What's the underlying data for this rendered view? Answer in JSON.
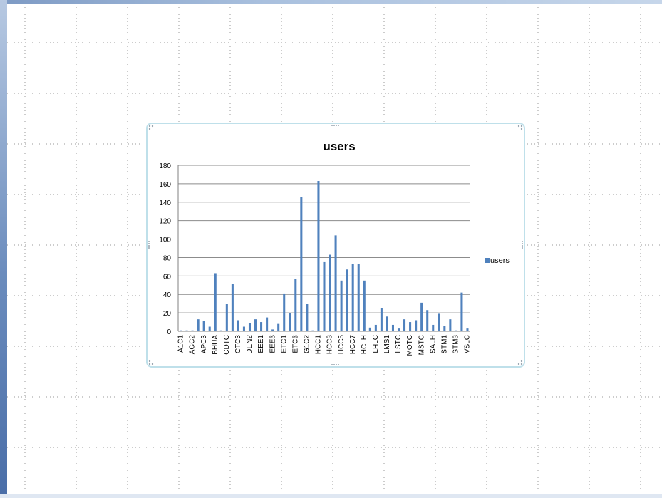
{
  "chart_data": {
    "type": "bar",
    "title": "users",
    "legend": {
      "position": "right",
      "entries": [
        "users"
      ]
    },
    "ylim": [
      0,
      180
    ],
    "yticks": [
      0,
      20,
      40,
      60,
      80,
      100,
      120,
      140,
      160,
      180
    ],
    "grid": true,
    "bar_color": "#4f81bd",
    "category_labels_shown": [
      "A1C1",
      "AGC2",
      "APC3",
      "BHUA",
      "CDTC",
      "CTC3",
      "DEN2",
      "EEE1",
      "EEE3",
      "ETC1",
      "ETC3",
      "G1C2",
      "HCC1",
      "HCC3",
      "HCC5",
      "HCC7",
      "HCLH",
      "LHLC",
      "LMS1",
      "LSTC",
      "MOTC",
      "MSTC",
      "SALH",
      "STM1",
      "STM3",
      "VSLC"
    ],
    "series": [
      {
        "name": "users",
        "values": [
          1,
          1,
          1,
          13,
          11,
          5,
          63,
          1,
          30,
          51,
          12,
          5,
          9,
          13,
          10,
          15,
          2,
          8,
          41,
          20,
          57,
          146,
          30,
          1,
          163,
          75,
          83,
          104,
          55,
          67,
          73,
          73,
          55,
          4,
          7,
          25,
          16,
          7,
          3,
          13,
          10,
          12,
          31,
          23,
          7,
          19,
          6,
          13,
          1,
          42,
          3
        ]
      }
    ]
  }
}
